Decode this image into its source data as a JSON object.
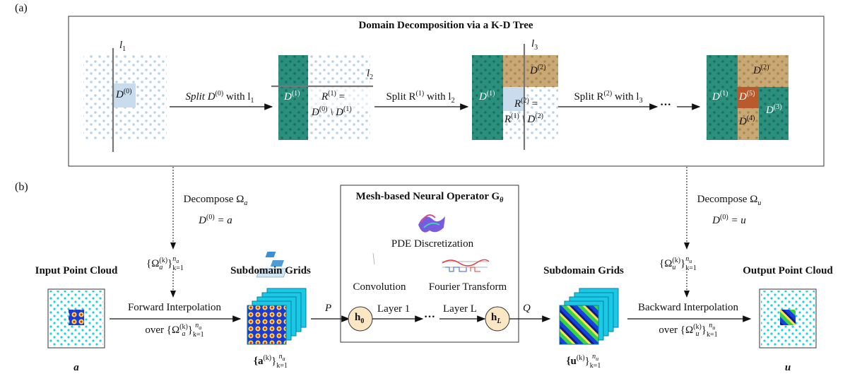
{
  "panel_a": {
    "tag": "(a)",
    "title": "Domain Decomposition via a K-D Tree",
    "l1": "l",
    "l1_sub": "1",
    "l2": "l",
    "l2_sub": "2",
    "l3": "l",
    "l3_sub": "3",
    "d0": "D",
    "d0_sup": "(0)",
    "step1_text": "Split D",
    "step1_sup": "(0)",
    "step1_tail": " with l",
    "step1_sub": "1",
    "step2_text": "Split R",
    "step2_sup": "(1)",
    "step2_tail": " with l",
    "step2_sub": "2",
    "step3_text": "Split R",
    "step3_sup": "(2)",
    "step3_tail": " with l",
    "step3_sub": "3",
    "d1": "D",
    "d1_sup": "(1)",
    "d2": "D",
    "d2_sup": "(2)",
    "d3": "D",
    "d3_sup": "(3)",
    "d4": "D",
    "d4_sup": "(4)",
    "d5": "D",
    "d5_sup": "(5)",
    "r1_line1": "R",
    "r1_sup": "(1)",
    "r1_eq": " =",
    "r1_line2": "D",
    "r1_line2_sup": "(0)",
    "r1_minus": " \\ D",
    "r1_minus_sup": "(1)",
    "r2_line1": "R",
    "r2_sup": "(2)",
    "r2_eq": " =",
    "r2_line2": "R",
    "r2_line2_sup": "(1)",
    "r2_minus": " \\ D",
    "r2_minus_sup": "(2)",
    "ellipsis": "···"
  },
  "panel_b": {
    "tag": "(b)",
    "decompose_a_line1": "Decompose Ω",
    "decompose_a_sub": "a",
    "decompose_a_line2": "D",
    "decompose_a_line2_sup": "(0)",
    "decompose_a_line2_tail": " = a",
    "decompose_u_line1": "Decompose Ω",
    "decompose_u_sub": "u",
    "decompose_u_line2": "D",
    "decompose_u_line2_sup": "(0)",
    "decompose_u_line2_tail": " = u",
    "omega_a_set": "{Ω",
    "omega_a_sub": "a",
    "omega_a_sup": "(k)",
    "omega_a_close": "}",
    "omega_a_lim_sub": "k=1",
    "omega_a_lim_sup": "n",
    "omega_a_lim_sup_sub": "a",
    "omega_u_set": "{Ω",
    "omega_u_sub": "u",
    "omega_u_sup": "(k)",
    "omega_u_close": "}",
    "omega_u_lim_sub": "k=1",
    "omega_u_lim_sup": "n",
    "omega_u_lim_sup_sub": "u",
    "input_title": "Input Point Cloud",
    "input_var": "a",
    "output_title": "Output Point Cloud",
    "output_var": "u",
    "subgrids_left_title": "Subdomain Grids",
    "subgrids_right_title": "Subdomain Grids",
    "a_set": "{a",
    "a_set_sup": "(k)",
    "a_set_close": "}",
    "a_set_lim_sub": "k=1",
    "a_set_lim_sup": "n",
    "a_set_lim_sup_sub": "a",
    "u_set": "{u",
    "u_set_sup": "(k)",
    "u_set_close": "}",
    "u_set_lim_sub": "k=1",
    "u_set_lim_sup": "n",
    "u_set_lim_sup_sub": "u",
    "forward_line1": "Forward Interpolation",
    "forward_line2": "over {Ω",
    "forward_line2_sub": "a",
    "forward_line2_sup": "(k)",
    "forward_line2_close": "}",
    "forward_line2_lim_sub": "k=1",
    "forward_line2_lim_sup": "n",
    "forward_line2_lim_sup_sub": "a",
    "backward_line1": "Backward Interpolation",
    "backward_line2": "over {Ω",
    "backward_line2_sub": "u",
    "backward_line2_sup": "(k)",
    "backward_line2_close": "}",
    "backward_line2_lim_sub": "k=1",
    "backward_line2_lim_sup": "n",
    "backward_line2_lim_sup_sub": "u",
    "operator_title": "Mesh-based Neural Operator G",
    "operator_sub": "θ",
    "pde_label": "PDE Discretization",
    "conv_label": "Convolution",
    "fourier_label": "Fourier Transform",
    "p_label": "P",
    "q_label": "Q",
    "h0": "h",
    "h0_sub": "0",
    "hL": "h",
    "hL_sub": "L",
    "layer1": "Layer 1",
    "layerL": "Layer L",
    "ellipsis": "···"
  },
  "colors": {
    "teal": "#2a8f7d",
    "tan": "#c9a874",
    "rust": "#b85a2c",
    "lightblue": "#c8dced",
    "dot": "#b9d3e6",
    "node_fill": "#fbe7c4",
    "cyan": "#19d3e3"
  }
}
